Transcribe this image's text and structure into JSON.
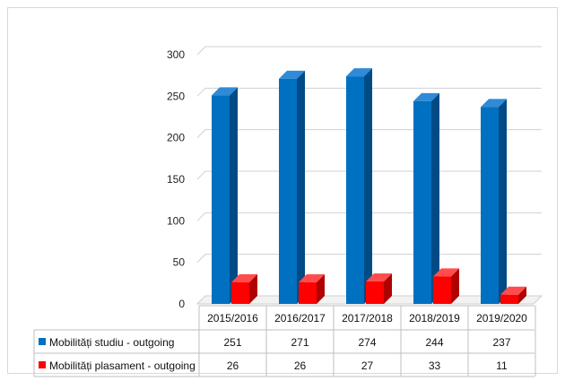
{
  "chart_data": {
    "type": "bar",
    "categories": [
      "2015/2016",
      "2016/2017",
      "2017/2018",
      "2018/2019",
      "2019/2020"
    ],
    "series": [
      {
        "name": "Mobilități studiu - outgoing",
        "values": [
          251,
          271,
          274,
          244,
          237
        ]
      },
      {
        "name": "Mobilități plasament - outgoing",
        "values": [
          26,
          26,
          27,
          33,
          11
        ]
      }
    ],
    "title": "",
    "xlabel": "",
    "ylabel": "",
    "ylim": [
      0,
      300
    ],
    "yticks": [
      "0",
      "50",
      "100",
      "150",
      "200",
      "250",
      "300"
    ],
    "grid": true,
    "legend": "data-table",
    "style": "3d-column",
    "colors": {
      "series_0_front": "#0070c0",
      "series_0_side": "#004b85",
      "series_0_top": "#2f8ad8",
      "series_1_front": "#ff0000",
      "series_1_side": "#b00000",
      "series_1_top": "#ff4d4d",
      "gridline": "#d0d0d0",
      "table_border": "#bfbfbf"
    }
  }
}
